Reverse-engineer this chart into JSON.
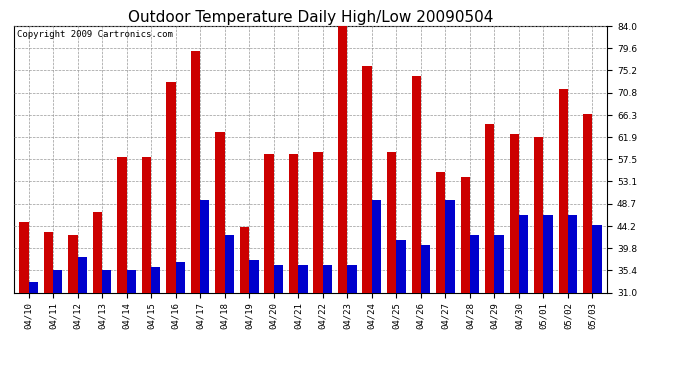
{
  "title": "Outdoor Temperature Daily High/Low 20090504",
  "copyright": "Copyright 2009 Cartronics.com",
  "categories": [
    "04/10",
    "04/11",
    "04/12",
    "04/13",
    "04/14",
    "04/15",
    "04/16",
    "04/17",
    "04/18",
    "04/19",
    "04/20",
    "04/21",
    "04/22",
    "04/23",
    "04/24",
    "04/25",
    "04/26",
    "04/27",
    "04/28",
    "04/29",
    "04/30",
    "05/01",
    "05/02",
    "05/03"
  ],
  "highs": [
    45.0,
    43.0,
    42.5,
    47.0,
    58.0,
    58.0,
    73.0,
    79.0,
    63.0,
    44.0,
    58.5,
    58.5,
    59.0,
    85.0,
    76.0,
    59.0,
    74.0,
    55.0,
    54.0,
    64.5,
    62.5,
    62.0,
    71.5,
    66.5
  ],
  "lows": [
    33.0,
    35.5,
    38.0,
    35.5,
    35.5,
    36.0,
    37.0,
    49.5,
    42.5,
    37.5,
    36.5,
    36.5,
    36.5,
    36.5,
    49.5,
    41.5,
    40.5,
    49.5,
    42.5,
    42.5,
    46.5,
    46.5,
    46.5,
    44.5
  ],
  "high_color": "#cc0000",
  "low_color": "#0000cc",
  "bg_color": "#ffffff",
  "plot_bg_color": "#ffffff",
  "grid_color": "#999999",
  "ymin": 31.0,
  "ymax": 84.0,
  "yticks": [
    31.0,
    35.4,
    39.8,
    44.2,
    48.7,
    53.1,
    57.5,
    61.9,
    66.3,
    70.8,
    75.2,
    79.6,
    84.0
  ],
  "title_fontsize": 11,
  "copyright_fontsize": 6.5,
  "tick_fontsize": 6.5,
  "bar_width": 0.38
}
